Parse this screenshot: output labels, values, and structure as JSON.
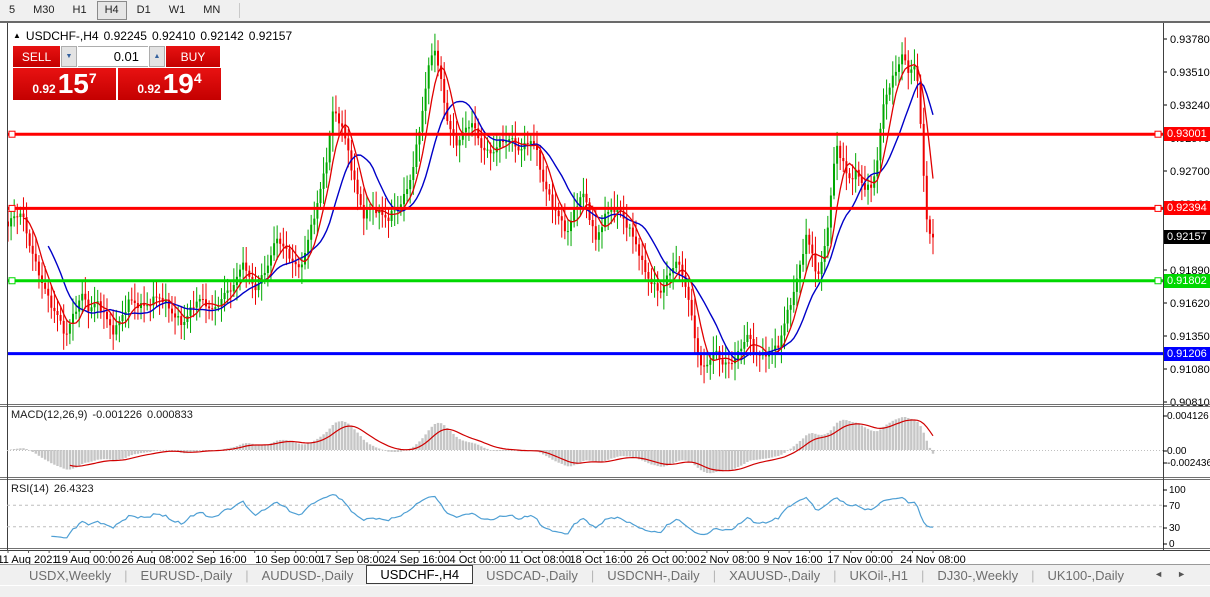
{
  "colors": {
    "chart_bg": "#FFFFFF",
    "up": "#00A800",
    "down": "#EE0000",
    "ma_fast": "#E00000",
    "ma_slow": "#0000C8",
    "hist": "#C6C6C6",
    "signal": "#D00000",
    "rsi_line": "#4E9FD4",
    "axis_text": "#000000",
    "level_red": "#FF0000",
    "level_green": "#00D800",
    "level_blue": "#0000FF",
    "current_tag": "#000000"
  },
  "toolbar": {
    "buttons": [
      {
        "label": "5",
        "active": false
      },
      {
        "label": "M30",
        "active": false
      },
      {
        "label": "H1",
        "active": false
      },
      {
        "label": "H4",
        "active": true
      },
      {
        "label": "D1",
        "active": false
      },
      {
        "label": "W1",
        "active": false
      },
      {
        "label": "MN",
        "active": false
      }
    ]
  },
  "chart": {
    "title": {
      "tri": "▲",
      "symbol": "USDCHF-,H4",
      "open": "0.92245",
      "high": "0.92410",
      "low": "0.92142",
      "close": "0.92157"
    },
    "trade_panel": {
      "sell": "SELL",
      "buy": "BUY",
      "volume": "0.01",
      "spin_down": "▼",
      "spin_up": "▲",
      "sell_price": {
        "prefix": "0.92",
        "big": "15",
        "sup": "7"
      },
      "buy_price": {
        "prefix": "0.92",
        "big": "19",
        "sup": "4"
      }
    },
    "levels": [
      {
        "label": "0.93001",
        "value": 0.93001,
        "color": "#FF0000",
        "handles": true
      },
      {
        "label": "0.92394",
        "value": 0.92394,
        "color": "#FF0000",
        "handles": true
      },
      {
        "label": "0.91802",
        "value": 0.91802,
        "color": "#00D800",
        "handles": true
      },
      {
        "label": "0.91206",
        "value": 0.91206,
        "color": "#0000FF",
        "handles": false
      }
    ],
    "current_price": {
      "label": "0.92157",
      "value": 0.92157
    },
    "y_axis": {
      "ticks": [
        {
          "label": "0.93780",
          "value": 0.9378
        },
        {
          "label": "0.93510",
          "value": 0.9351
        },
        {
          "label": "0.93240",
          "value": 0.9324
        },
        {
          "label": "0.92970",
          "value": 0.9297
        },
        {
          "label": "0.92700",
          "value": 0.927
        },
        {
          "label": "0.92430",
          "value": 0.9243
        },
        {
          "label": "0.92160",
          "value": 0.9216
        },
        {
          "label": "0.91890",
          "value": 0.9189
        },
        {
          "label": "0.91620",
          "value": 0.9162
        },
        {
          "label": "0.91350",
          "value": 0.9135
        },
        {
          "label": "0.91080",
          "value": 0.9108
        },
        {
          "label": "0.90810",
          "value": 0.9081
        }
      ]
    },
    "x_axis": {
      "labels": [
        {
          "text": "11 Aug 2021",
          "f": 0.0216
        },
        {
          "text": "19 Aug 00:00",
          "f": 0.0865
        },
        {
          "text": "26 Aug 08:00",
          "f": 0.1578
        },
        {
          "text": "2 Sep 16:00",
          "f": 0.2259
        },
        {
          "text": "10 Sep 00:00",
          "f": 0.3027
        },
        {
          "text": "17 Sep 08:00",
          "f": 0.3719
        },
        {
          "text": "24 Sep 16:00",
          "f": 0.4422
        },
        {
          "text": "4 Oct 00:00",
          "f": 0.5081
        },
        {
          "text": "11 Oct 08:00",
          "f": 0.5751
        },
        {
          "text": "18 Oct 16:00",
          "f": 0.6411
        },
        {
          "text": "26 Oct 00:00",
          "f": 0.7135
        },
        {
          "text": "2 Nov 08:00",
          "f": 0.7805
        },
        {
          "text": "9 Nov 16:00",
          "f": 0.8486
        },
        {
          "text": "17 Nov 00:00",
          "f": 0.9211
        },
        {
          "text": "24 Nov 08:00",
          "f": 1.0
        }
      ]
    }
  },
  "indicators": {
    "macd": {
      "name": "MACD(12,26,9)",
      "value1": "-0.001226",
      "value2": "0.000833",
      "axis": [
        {
          "label": "0.004126"
        },
        {
          "label": "0.00"
        },
        {
          "label": "-0.002436"
        }
      ]
    },
    "rsi": {
      "name": "RSI(14)",
      "value": "26.4323",
      "axis": [
        {
          "label": "100"
        },
        {
          "label": "70"
        },
        {
          "label": "30"
        },
        {
          "label": "0"
        }
      ],
      "levels": [
        70,
        30
      ]
    }
  },
  "tabs": {
    "items": [
      {
        "label": "USDX,Weekly",
        "active": false
      },
      {
        "label": "EURUSD-,Daily",
        "active": false
      },
      {
        "label": "AUDUSD-,Daily",
        "active": false
      },
      {
        "label": "USDCHF-,H4",
        "active": true
      },
      {
        "label": "USDCAD-,Daily",
        "active": false
      },
      {
        "label": "USDCNH-,Daily",
        "active": false
      },
      {
        "label": "XAUUSD-,Daily",
        "active": false
      },
      {
        "label": "UKOil-,H1",
        "active": false
      },
      {
        "label": "DJ30-,Weekly",
        "active": false
      },
      {
        "label": "UK100-,Daily",
        "active": false
      }
    ],
    "scroll_left": "◄",
    "scroll_right": "►"
  },
  "chart_data": {
    "type": "candlestick",
    "symbol": "USDCHF",
    "timeframe": "H4",
    "x_range": [
      "11 Aug 2021",
      "24 Nov 2021 08:00"
    ],
    "y_range": [
      0.9074,
      0.9386
    ],
    "candle_count": 300,
    "ma_fast_period": 6,
    "ma_slow_period": 14,
    "price_path": [
      [
        0.0,
        0.9222
      ],
      [
        0.0065,
        0.9231
      ],
      [
        0.0151,
        0.9236
      ],
      [
        0.0238,
        0.9212
      ],
      [
        0.0346,
        0.9184
      ],
      [
        0.0454,
        0.9159
      ],
      [
        0.0541,
        0.9149
      ],
      [
        0.0627,
        0.9137
      ],
      [
        0.0714,
        0.9157
      ],
      [
        0.08,
        0.9169
      ],
      [
        0.0886,
        0.9153
      ],
      [
        0.0973,
        0.9161
      ],
      [
        0.1059,
        0.9151
      ],
      [
        0.1146,
        0.9141
      ],
      [
        0.1232,
        0.9152
      ],
      [
        0.1319,
        0.9162
      ],
      [
        0.1427,
        0.9157
      ],
      [
        0.1535,
        0.9164
      ],
      [
        0.1622,
        0.9171
      ],
      [
        0.1708,
        0.9161
      ],
      [
        0.1795,
        0.9149
      ],
      [
        0.1881,
        0.9143
      ],
      [
        0.1968,
        0.9157
      ],
      [
        0.2054,
        0.9169
      ],
      [
        0.2141,
        0.9161
      ],
      [
        0.2227,
        0.9152
      ],
      [
        0.2314,
        0.9165
      ],
      [
        0.24,
        0.9174
      ],
      [
        0.2486,
        0.9186
      ],
      [
        0.2541,
        0.9199
      ],
      [
        0.2605,
        0.9181
      ],
      [
        0.2681,
        0.9171
      ],
      [
        0.2768,
        0.9184
      ],
      [
        0.2843,
        0.9202
      ],
      [
        0.2908,
        0.9219
      ],
      [
        0.2984,
        0.9209
      ],
      [
        0.307,
        0.9196
      ],
      [
        0.3146,
        0.9186
      ],
      [
        0.3222,
        0.9204
      ],
      [
        0.3286,
        0.9228
      ],
      [
        0.3351,
        0.9248
      ],
      [
        0.3438,
        0.9278
      ],
      [
        0.3514,
        0.9318
      ],
      [
        0.3589,
        0.9308
      ],
      [
        0.3676,
        0.9286
      ],
      [
        0.3762,
        0.9257
      ],
      [
        0.3849,
        0.9236
      ],
      [
        0.3935,
        0.9241
      ],
      [
        0.4022,
        0.9232
      ],
      [
        0.4108,
        0.9229
      ],
      [
        0.4195,
        0.9241
      ],
      [
        0.4281,
        0.9251
      ],
      [
        0.4368,
        0.9269
      ],
      [
        0.4454,
        0.9303
      ],
      [
        0.4541,
        0.9349
      ],
      [
        0.4605,
        0.9374
      ],
      [
        0.4681,
        0.9346
      ],
      [
        0.4757,
        0.9311
      ],
      [
        0.4843,
        0.9291
      ],
      [
        0.493,
        0.9299
      ],
      [
        0.5016,
        0.9309
      ],
      [
        0.5103,
        0.9294
      ],
      [
        0.5211,
        0.9286
      ],
      [
        0.5319,
        0.9291
      ],
      [
        0.5427,
        0.9294
      ],
      [
        0.5535,
        0.9288
      ],
      [
        0.5643,
        0.9299
      ],
      [
        0.5708,
        0.9289
      ],
      [
        0.5795,
        0.9256
      ],
      [
        0.5881,
        0.9241
      ],
      [
        0.5968,
        0.9231
      ],
      [
        0.6054,
        0.9223
      ],
      [
        0.6141,
        0.9244
      ],
      [
        0.6227,
        0.9249
      ],
      [
        0.6292,
        0.9229
      ],
      [
        0.6357,
        0.9211
      ],
      [
        0.6443,
        0.9234
      ],
      [
        0.653,
        0.9243
      ],
      [
        0.6616,
        0.9237
      ],
      [
        0.6703,
        0.9221
      ],
      [
        0.6789,
        0.9209
      ],
      [
        0.6876,
        0.9191
      ],
      [
        0.6962,
        0.9181
      ],
      [
        0.7049,
        0.9171
      ],
      [
        0.7135,
        0.9181
      ],
      [
        0.7222,
        0.9194
      ],
      [
        0.7308,
        0.9184
      ],
      [
        0.7373,
        0.9161
      ],
      [
        0.7438,
        0.9131
      ],
      [
        0.7503,
        0.9106
      ],
      [
        0.7568,
        0.9112
      ],
      [
        0.7654,
        0.912
      ],
      [
        0.7741,
        0.9111
      ],
      [
        0.7827,
        0.9117
      ],
      [
        0.7914,
        0.9124
      ],
      [
        0.7989,
        0.9136
      ],
      [
        0.8065,
        0.9119
      ],
      [
        0.8151,
        0.9117
      ],
      [
        0.8238,
        0.9124
      ],
      [
        0.8324,
        0.9129
      ],
      [
        0.8411,
        0.9149
      ],
      [
        0.8497,
        0.9169
      ],
      [
        0.8562,
        0.9189
      ],
      [
        0.8627,
        0.9218
      ],
      [
        0.8692,
        0.9204
      ],
      [
        0.8757,
        0.9186
      ],
      [
        0.8822,
        0.9204
      ],
      [
        0.8886,
        0.9239
      ],
      [
        0.8951,
        0.9289
      ],
      [
        0.9016,
        0.9278
      ],
      [
        0.9081,
        0.9263
      ],
      [
        0.9168,
        0.9272
      ],
      [
        0.9254,
        0.9259
      ],
      [
        0.9341,
        0.9254
      ],
      [
        0.9405,
        0.9281
      ],
      [
        0.947,
        0.9326
      ],
      [
        0.9535,
        0.9341
      ],
      [
        0.96,
        0.9354
      ],
      [
        0.9665,
        0.9369
      ],
      [
        0.973,
        0.9351
      ],
      [
        0.9795,
        0.9356
      ],
      [
        0.9838,
        0.9336
      ],
      [
        0.9881,
        0.9291
      ],
      [
        0.9924,
        0.9232
      ],
      [
        0.9968,
        0.9216
      ],
      [
        1.0,
        0.92157
      ]
    ]
  }
}
